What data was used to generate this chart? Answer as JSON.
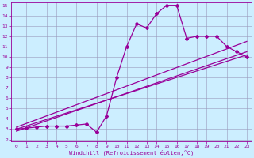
{
  "xlabel": "Windchill (Refroidissement éolien,°C)",
  "ylabel": "",
  "bg_color": "#cceeff",
  "line_color": "#990099",
  "xlim": [
    -0.5,
    23.5
  ],
  "ylim": [
    1.8,
    15.3
  ],
  "xticks": [
    0,
    1,
    2,
    3,
    4,
    5,
    6,
    7,
    8,
    9,
    10,
    11,
    12,
    13,
    14,
    15,
    16,
    17,
    18,
    19,
    20,
    21,
    22,
    23
  ],
  "yticks": [
    2,
    3,
    4,
    5,
    6,
    7,
    8,
    9,
    10,
    11,
    12,
    13,
    14,
    15
  ],
  "jagged_x": [
    0,
    1,
    2,
    3,
    4,
    5,
    6,
    7,
    8,
    9,
    10,
    11,
    12,
    13,
    14,
    15,
    16,
    17,
    18,
    19,
    20,
    21,
    22,
    23
  ],
  "jagged_y": [
    3.0,
    3.1,
    3.2,
    3.3,
    3.3,
    3.3,
    3.4,
    3.5,
    2.7,
    4.3,
    8.0,
    11.0,
    13.2,
    12.8,
    14.2,
    15.0,
    15.0,
    11.8,
    12.0,
    12.0,
    12.0,
    11.0,
    10.5,
    10.0
  ],
  "line1_x": [
    0,
    23
  ],
  "line1_y": [
    3.0,
    10.2
  ],
  "line2_x": [
    0,
    23
  ],
  "line2_y": [
    3.2,
    11.5
  ],
  "line3_x": [
    0,
    23
  ],
  "line3_y": [
    2.8,
    10.5
  ]
}
